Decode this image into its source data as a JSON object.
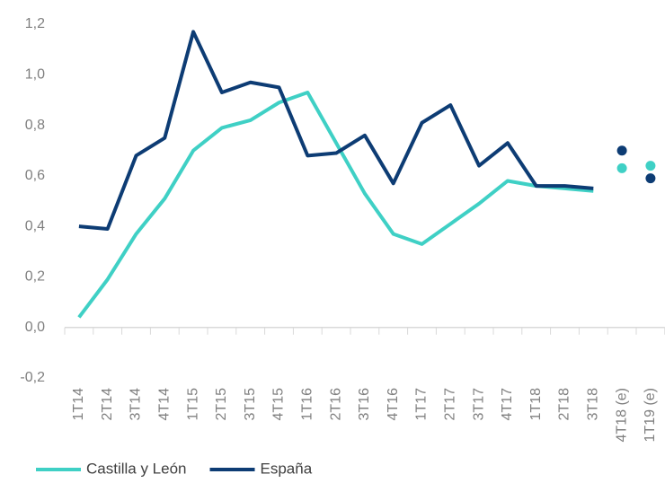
{
  "chart_data": {
    "type": "line",
    "categories": [
      "1T14",
      "2T14",
      "3T14",
      "4T14",
      "1T15",
      "2T15",
      "3T15",
      "4T15",
      "1T16",
      "2T16",
      "3T16",
      "4T16",
      "1T17",
      "2T17",
      "3T17",
      "4T17",
      "1T18",
      "2T18",
      "3T18",
      "4T18 (e)",
      "1T19 (e)"
    ],
    "series": [
      {
        "name": "Castilla y León",
        "color": "#3fd0c5",
        "values": [
          0.04,
          0.19,
          0.37,
          0.51,
          0.7,
          0.79,
          0.82,
          0.89,
          0.93,
          0.73,
          0.53,
          0.37,
          0.33,
          0.41,
          0.49,
          0.58,
          0.56,
          0.55,
          0.54,
          null,
          null
        ],
        "estimate_values": [
          null,
          null,
          null,
          null,
          null,
          null,
          null,
          null,
          null,
          null,
          null,
          null,
          null,
          null,
          null,
          null,
          null,
          null,
          null,
          0.63,
          0.64
        ]
      },
      {
        "name": "España",
        "color": "#0d3c74",
        "values": [
          0.4,
          0.39,
          0.68,
          0.75,
          1.17,
          0.93,
          0.97,
          0.95,
          0.68,
          0.69,
          0.76,
          0.57,
          0.81,
          0.88,
          0.64,
          0.73,
          0.56,
          0.56,
          0.55,
          null,
          null
        ],
        "estimate_values": [
          null,
          null,
          null,
          null,
          null,
          null,
          null,
          null,
          null,
          null,
          null,
          null,
          null,
          null,
          null,
          null,
          null,
          null,
          null,
          0.7,
          0.59
        ]
      }
    ],
    "ylim": [
      -0.2,
      1.2
    ],
    "yticks": [
      {
        "value": -0.2,
        "label": "-0,2"
      },
      {
        "value": 0,
        "label": "0,0"
      },
      {
        "value": 0.2,
        "label": "0,2"
      },
      {
        "value": 0.4,
        "label": "0,4"
      },
      {
        "value": 0.6,
        "label": "0,6"
      },
      {
        "value": 0.8,
        "label": "0,8"
      },
      {
        "value": 1.0,
        "label": "1,0"
      },
      {
        "value": 1.2,
        "label": "1,2"
      }
    ],
    "grid": false,
    "legend": "bottom"
  }
}
